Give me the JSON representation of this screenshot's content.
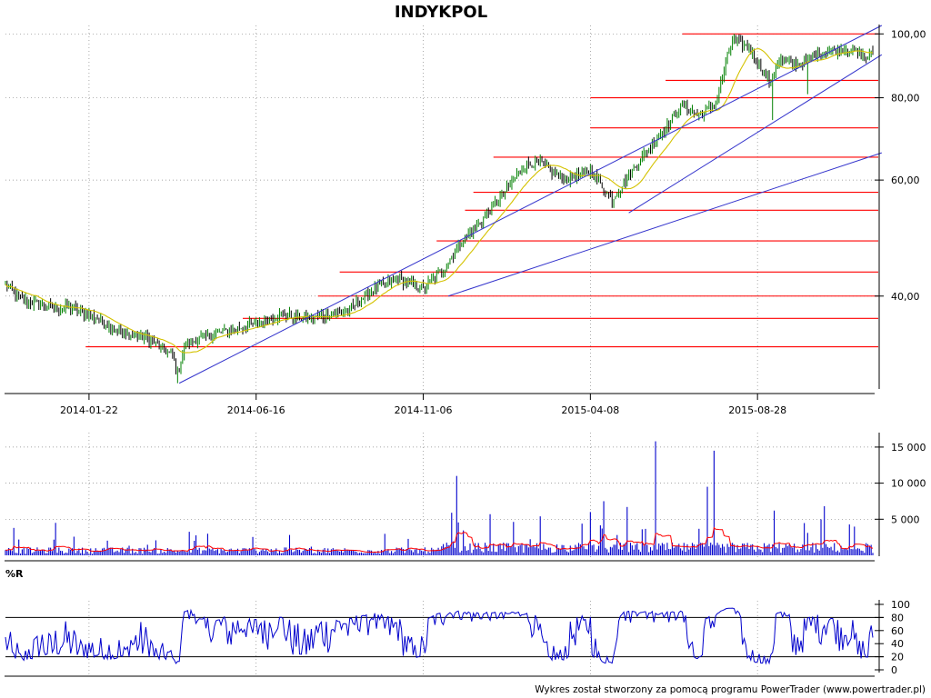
{
  "title": "INDYKPOL",
  "footer": "Wykres został stworzony za pomocą programu PowerTrader (www.powertrader.pl)",
  "colors": {
    "price_bar": "#000000",
    "price_bar_up": "#008000",
    "moving_average": "#d4c200",
    "resistance": "#ff0000",
    "trendline": "#3333cc",
    "volume": "#0000cc",
    "volume_ma": "#ff0000",
    "percent_r": "#0000cc",
    "grid": "#888888"
  },
  "chart_data": [
    {
      "type": "line",
      "name": "price",
      "y_scale": "log",
      "ylim": [
        29,
        103
      ],
      "y_ticks": [
        {
          "value": 100,
          "label": "100,00"
        },
        {
          "value": 80,
          "label": "80,00"
        },
        {
          "value": 60,
          "label": "60,00"
        },
        {
          "value": 40,
          "label": "40,00"
        }
      ],
      "x_ticks": [
        {
          "index": 50,
          "label": "2014-01-22"
        },
        {
          "index": 150,
          "label": "2014-06-16"
        },
        {
          "index": 250,
          "label": "2014-11-06"
        },
        {
          "index": 350,
          "label": "2015-04-08"
        },
        {
          "index": 450,
          "label": "2015-08-28"
        }
      ],
      "n_bars": 520,
      "anchors": [
        [
          0,
          41.5
        ],
        [
          10,
          39.5
        ],
        [
          25,
          38.5
        ],
        [
          40,
          38.3
        ],
        [
          55,
          37.0
        ],
        [
          70,
          35.0
        ],
        [
          85,
          34.5
        ],
        [
          100,
          32.5
        ],
        [
          103,
          30.5
        ],
        [
          108,
          34.0
        ],
        [
          125,
          35.0
        ],
        [
          150,
          36.3
        ],
        [
          165,
          37.5
        ],
        [
          180,
          37.0
        ],
        [
          195,
          37.5
        ],
        [
          205,
          38.0
        ],
        [
          220,
          41.0
        ],
        [
          235,
          42.5
        ],
        [
          250,
          41.0
        ],
        [
          262,
          44.0
        ],
        [
          272,
          48.0
        ],
        [
          285,
          52.0
        ],
        [
          300,
          58.0
        ],
        [
          310,
          63.0
        ],
        [
          318,
          64.0
        ],
        [
          335,
          60.0
        ],
        [
          350,
          62.0
        ],
        [
          363,
          56.0
        ],
        [
          375,
          62.0
        ],
        [
          385,
          67.0
        ],
        [
          395,
          72.0
        ],
        [
          405,
          78.0
        ],
        [
          415,
          75.0
        ],
        [
          425,
          78.0
        ],
        [
          435,
          98.0
        ],
        [
          445,
          95.0
        ],
        [
          458,
          84.0
        ],
        [
          462,
          91.0
        ],
        [
          475,
          90.0
        ],
        [
          490,
          94.0
        ],
        [
          505,
          95.0
        ],
        [
          515,
          92.0
        ],
        [
          519,
          93.5
        ]
      ],
      "resistance_levels": [
        {
          "value": 100.0,
          "from": 405
        },
        {
          "value": 85.0,
          "from": 395
        },
        {
          "value": 80.0,
          "from": 350
        },
        {
          "value": 72.0,
          "from": 350
        },
        {
          "value": 65.0,
          "from": 292
        },
        {
          "value": 57.5,
          "from": 280
        },
        {
          "value": 54.0,
          "from": 275
        },
        {
          "value": 48.5,
          "from": 258
        },
        {
          "value": 43.5,
          "from": 200
        },
        {
          "value": 40.0,
          "from": 187
        },
        {
          "value": 37.0,
          "from": 142
        },
        {
          "value": 33.5,
          "from": 48
        }
      ],
      "trendlines": [
        {
          "from": [
            104,
            29.5
          ],
          "to": [
            520,
            103.0
          ]
        },
        {
          "from": [
            265,
            40.0
          ],
          "to": [
            520,
            66.0
          ]
        },
        {
          "from": [
            373,
            53.5
          ],
          "to": [
            520,
            93.0
          ]
        }
      ],
      "spikes": [
        {
          "index": 459,
          "low": 74.0
        },
        {
          "index": 480,
          "low": 81.0
        },
        {
          "index": 103,
          "low": 29.5
        }
      ]
    },
    {
      "type": "bar",
      "name": "volume",
      "ylim": [
        0,
        16500
      ],
      "y_ticks": [
        {
          "value": 15000,
          "label": "15 000"
        },
        {
          "value": 10000,
          "label": "10 000"
        },
        {
          "value": 5000,
          "label": "5 000"
        }
      ],
      "spikes": [
        {
          "index": 389,
          "value": 15800
        },
        {
          "index": 424,
          "value": 14500
        },
        {
          "index": 420,
          "value": 9500
        },
        {
          "index": 270,
          "value": 11000
        },
        {
          "index": 358,
          "value": 7500
        },
        {
          "index": 372,
          "value": 6700
        },
        {
          "index": 490,
          "value": 6800
        },
        {
          "index": 460,
          "value": 6200
        },
        {
          "index": 350,
          "value": 6000
        },
        {
          "index": 267,
          "value": 5900
        },
        {
          "index": 290,
          "value": 5700
        },
        {
          "index": 320,
          "value": 5400
        },
        {
          "index": 30,
          "value": 4500
        },
        {
          "index": 5,
          "value": 3800
        }
      ]
    },
    {
      "type": "line",
      "name": "%R",
      "label": "%R",
      "ylim": [
        0,
        100
      ],
      "y_ticks": [
        {
          "value": 100,
          "label": "100"
        },
        {
          "value": 80,
          "label": "80"
        },
        {
          "value": 60,
          "label": "60"
        },
        {
          "value": 40,
          "label": "40"
        },
        {
          "value": 20,
          "label": "20"
        },
        {
          "value": 0,
          "label": "0"
        }
      ],
      "reference_lines": [
        80,
        20
      ]
    }
  ]
}
